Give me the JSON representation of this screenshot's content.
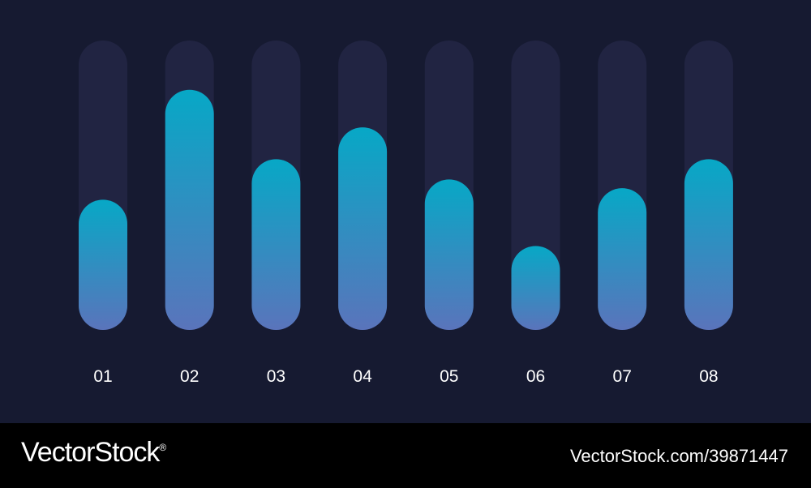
{
  "colors": {
    "background": "#161a31",
    "track": "#212442",
    "bar_top": "#07a8c6",
    "bar_bottom": "#5a74bb",
    "label": "#ffffff",
    "footer_bg": "#000000"
  },
  "chart_data": {
    "type": "bar",
    "title": "",
    "xlabel": "",
    "ylabel": "",
    "grid": false,
    "ylim": [
      0,
      100
    ],
    "categories": [
      "01",
      "02",
      "03",
      "04",
      "05",
      "06",
      "07",
      "08"
    ],
    "values": [
      45,
      83,
      59,
      70,
      52,
      29,
      49,
      59
    ]
  },
  "footer": {
    "brand": "VectorStock",
    "brand_mark": "®",
    "image_id": "VectorStock.com/39871447"
  }
}
